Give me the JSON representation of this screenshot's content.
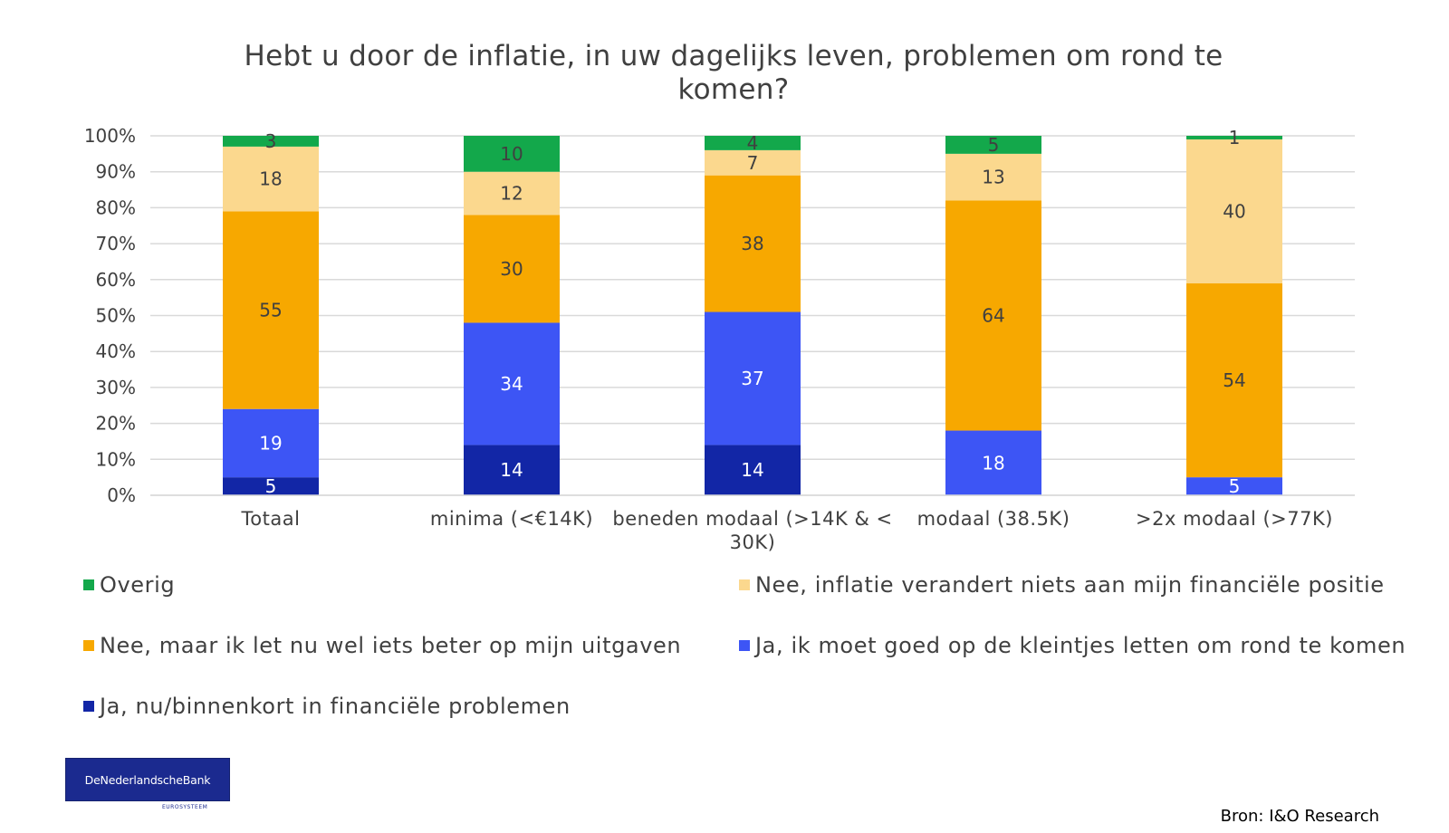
{
  "chart_data": {
    "type": "bar",
    "stacked": true,
    "percent_stacked": true,
    "title": "Hebt u door de inflatie, in uw dagelijks leven, problemen om rond te komen?",
    "xlabel": "",
    "ylabel": "",
    "ylim": [
      0,
      100
    ],
    "y_ticks": [
      "0%",
      "10%",
      "20%",
      "30%",
      "40%",
      "50%",
      "60%",
      "70%",
      "80%",
      "90%",
      "100%"
    ],
    "grid": true,
    "legend_position": "bottom",
    "categories": [
      "Totaal",
      "minima (<€14K)",
      "beneden modaal (>14K & < 30K)",
      "modaal (38.5K)",
      ">2x modaal (>77K)"
    ],
    "series": [
      {
        "name": "Ja, nu/binnenkort in financiële problemen",
        "color": "#1226a6",
        "values": [
          5,
          14,
          14,
          0,
          0
        ]
      },
      {
        "name": "Ja, ik moet goed op de kleintjes letten om rond te komen",
        "color": "#3d55f5",
        "values": [
          19,
          34,
          37,
          18,
          5
        ]
      },
      {
        "name": "Nee, maar ik let nu wel iets beter op mijn uitgaven",
        "color": "#f7a800",
        "values": [
          55,
          30,
          38,
          64,
          54
        ]
      },
      {
        "name": "Nee, inflatie verandert niets aan mijn financiële positie",
        "color": "#fbd88e",
        "values": [
          18,
          12,
          7,
          13,
          40
        ]
      },
      {
        "name": "Overig",
        "color": "#13a84b",
        "values": [
          3,
          10,
          4,
          5,
          1
        ]
      }
    ],
    "legend_order": [
      4,
      3,
      2,
      1,
      0
    ]
  },
  "footer": {
    "logo_name": "DeNederlandscheBank",
    "logo_sub": "EUROSYSTEEM",
    "source": "Bron: I&O Research"
  },
  "colors": {
    "text": "#404040",
    "grid": "#d9d9d9",
    "logo_bg": "#1b2a8f"
  }
}
